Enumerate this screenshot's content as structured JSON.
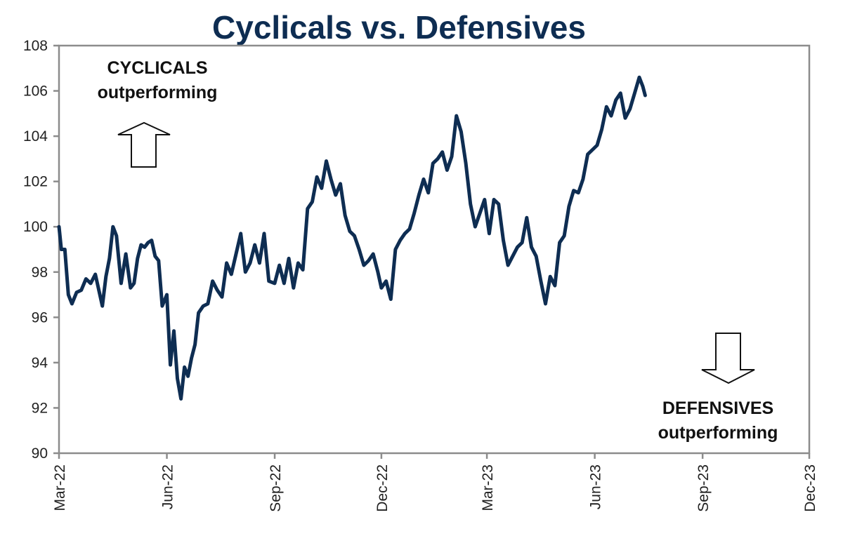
{
  "chart_data": {
    "type": "line",
    "title": "Cyclicals vs. Defensives",
    "xlabel": "",
    "ylabel": "",
    "ylim": [
      90,
      108
    ],
    "yticks": [
      90,
      92,
      94,
      96,
      98,
      100,
      102,
      104,
      106,
      108
    ],
    "xlim": [
      "2022-03-01",
      "2023-12-01"
    ],
    "xticks": [
      {
        "date": "2022-03-01",
        "label": "Mar-22"
      },
      {
        "date": "2022-06-01",
        "label": "Jun-22"
      },
      {
        "date": "2022-09-01",
        "label": "Sep-22"
      },
      {
        "date": "2022-12-01",
        "label": "Dec-22"
      },
      {
        "date": "2023-03-01",
        "label": "Mar-23"
      },
      {
        "date": "2023-06-01",
        "label": "Jun-23"
      },
      {
        "date": "2023-09-01",
        "label": "Sep-23"
      },
      {
        "date": "2023-12-01",
        "label": "Dec-23"
      }
    ],
    "grid": false,
    "legend": "none",
    "line_color": "#0e2d52",
    "annotations": [
      {
        "text_lines": [
          "CYCLICALS",
          "outperforming"
        ],
        "position": "top-left",
        "arrow": "up"
      },
      {
        "text_lines": [
          "DEFENSIVES",
          "outperforming"
        ],
        "position": "bottom-right",
        "arrow": "down"
      }
    ],
    "series": [
      {
        "name": "Cyclicals vs. Defensives",
        "x": [
          "2022-03-01",
          "2022-03-03",
          "2022-03-06",
          "2022-03-09",
          "2022-03-12",
          "2022-03-16",
          "2022-03-20",
          "2022-03-24",
          "2022-03-28",
          "2022-04-01",
          "2022-04-04",
          "2022-04-07",
          "2022-04-10",
          "2022-04-13",
          "2022-04-16",
          "2022-04-19",
          "2022-04-23",
          "2022-04-27",
          "2022-05-01",
          "2022-05-04",
          "2022-05-07",
          "2022-05-10",
          "2022-05-13",
          "2022-05-16",
          "2022-05-19",
          "2022-05-22",
          "2022-05-25",
          "2022-05-28",
          "2022-06-01",
          "2022-06-04",
          "2022-06-07",
          "2022-06-10",
          "2022-06-13",
          "2022-06-16",
          "2022-06-19",
          "2022-06-22",
          "2022-06-25",
          "2022-06-28",
          "2022-07-02",
          "2022-07-06",
          "2022-07-10",
          "2022-07-14",
          "2022-07-18",
          "2022-07-22",
          "2022-07-26",
          "2022-07-30",
          "2022-08-03",
          "2022-08-07",
          "2022-08-11",
          "2022-08-15",
          "2022-08-19",
          "2022-08-23",
          "2022-08-27",
          "2022-09-01",
          "2022-09-05",
          "2022-09-09",
          "2022-09-13",
          "2022-09-17",
          "2022-09-21",
          "2022-09-25",
          "2022-09-29",
          "2022-10-03",
          "2022-10-07",
          "2022-10-11",
          "2022-10-15",
          "2022-10-19",
          "2022-10-23",
          "2022-10-27",
          "2022-10-31",
          "2022-11-04",
          "2022-11-08",
          "2022-11-12",
          "2022-11-16",
          "2022-11-20",
          "2022-11-24",
          "2022-11-28",
          "2022-12-01",
          "2022-12-05",
          "2022-12-09",
          "2022-12-13",
          "2022-12-17",
          "2022-12-21",
          "2022-12-25",
          "2022-12-29",
          "2023-01-02",
          "2023-01-06",
          "2023-01-10",
          "2023-01-14",
          "2023-01-18",
          "2023-01-22",
          "2023-01-26",
          "2023-01-30",
          "2023-02-03",
          "2023-02-07",
          "2023-02-11",
          "2023-02-15",
          "2023-02-19",
          "2023-02-23",
          "2023-02-27",
          "2023-03-03",
          "2023-03-07",
          "2023-03-11",
          "2023-03-15",
          "2023-03-19",
          "2023-03-23",
          "2023-03-27",
          "2023-03-31",
          "2023-04-04",
          "2023-04-08",
          "2023-04-12",
          "2023-04-16",
          "2023-04-20",
          "2023-04-24",
          "2023-04-28",
          "2023-05-02",
          "2023-05-06",
          "2023-05-10",
          "2023-05-14",
          "2023-05-18",
          "2023-05-22",
          "2023-05-26",
          "2023-05-30",
          "2023-06-03",
          "2023-06-07",
          "2023-06-11",
          "2023-06-15",
          "2023-06-19",
          "2023-06-23",
          "2023-06-27",
          "2023-07-01",
          "2023-07-05",
          "2023-07-09",
          "2023-07-12",
          "2023-07-14"
        ],
        "values": [
          100.0,
          99.0,
          99.0,
          97.0,
          96.6,
          97.1,
          97.2,
          97.7,
          97.5,
          97.9,
          97.2,
          96.5,
          97.8,
          98.6,
          100.0,
          99.6,
          97.5,
          98.8,
          97.3,
          97.5,
          98.6,
          99.2,
          99.1,
          99.3,
          99.4,
          98.7,
          98.5,
          96.5,
          97.0,
          93.9,
          95.4,
          93.3,
          92.4,
          93.8,
          93.4,
          94.2,
          94.8,
          96.2,
          96.5,
          96.6,
          97.6,
          97.2,
          96.9,
          98.4,
          97.9,
          98.8,
          99.7,
          98.0,
          98.4,
          99.2,
          98.4,
          99.7,
          97.6,
          97.5,
          98.3,
          97.5,
          98.6,
          97.3,
          98.4,
          98.1,
          100.8,
          101.1,
          102.2,
          101.7,
          102.9,
          102.1,
          101.4,
          101.9,
          100.5,
          99.8,
          99.6,
          99.0,
          98.3,
          98.5,
          98.8,
          98.0,
          97.3,
          97.6,
          96.8,
          99.0,
          99.4,
          99.7,
          99.9,
          100.6,
          101.4,
          102.1,
          101.5,
          102.8,
          103.0,
          103.3,
          102.5,
          103.1,
          104.9,
          104.2,
          102.8,
          101.0,
          100.0,
          100.6,
          101.2,
          99.7,
          101.2,
          101.0,
          99.4,
          98.3,
          98.7,
          99.1,
          99.3,
          100.4,
          99.1,
          98.7,
          97.6,
          96.6,
          97.8,
          97.4,
          99.3,
          99.6,
          100.9,
          101.6,
          101.5,
          102.1,
          103.2,
          103.4,
          103.6,
          104.3,
          105.3,
          104.9,
          105.6,
          105.9,
          104.8,
          105.2,
          105.9,
          106.6,
          106.2,
          105.8
        ]
      }
    ]
  }
}
